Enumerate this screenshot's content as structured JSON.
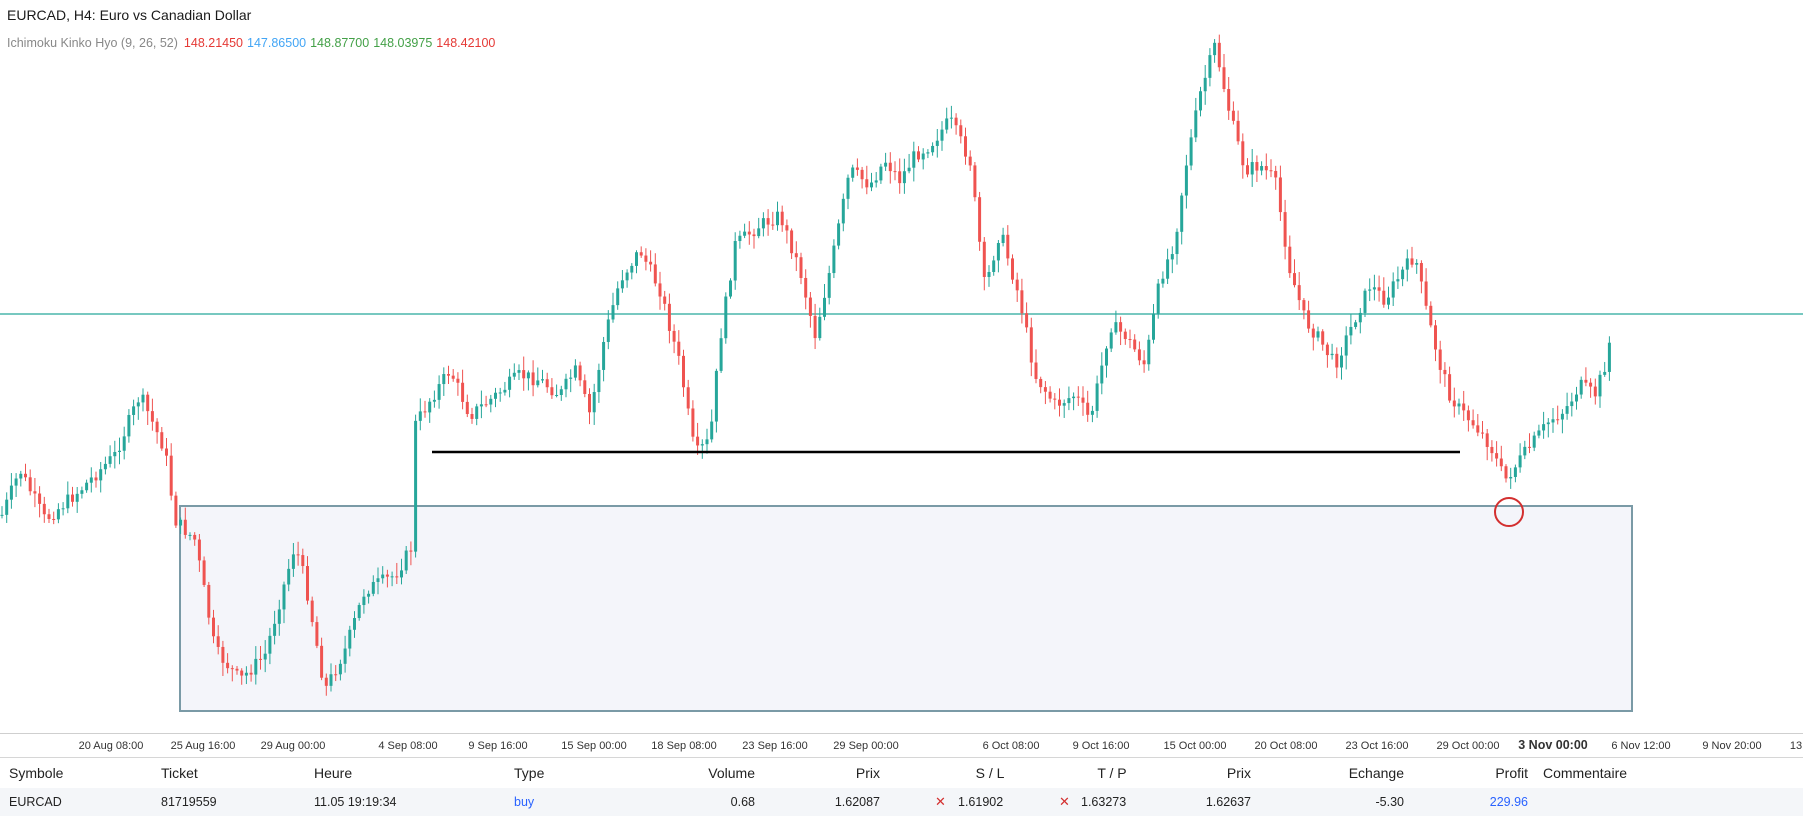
{
  "chart": {
    "title": "EURCAD, H4: Euro vs Canadian Dollar",
    "indicator": {
      "name": "Ichimoku Kinko Hyo (9, 26, 52)",
      "values": [
        {
          "value": "148.21450",
          "color": "#e53935"
        },
        {
          "value": "147.86500",
          "color": "#42a5f5"
        },
        {
          "value": "148.87700",
          "color": "#43a047"
        },
        {
          "value": "148.03975",
          "color": "#43a047"
        },
        {
          "value": "148.42100",
          "color": "#e53935"
        }
      ]
    },
    "colors": {
      "bull": "#26a69a",
      "bear": "#ef5350",
      "price_line": "#26a69a",
      "support_line": "#000000",
      "zone_fill": "#f4f5fa",
      "zone_border": "#7a9aa6",
      "marker": "#d32f2f"
    },
    "time_labels": [
      {
        "text": "20 Aug 08:00",
        "bold": false
      },
      {
        "text": "25 Aug 16:00",
        "bold": false
      },
      {
        "text": "29 Aug 00:00",
        "bold": false
      },
      {
        "text": "4 Sep 08:00",
        "bold": false
      },
      {
        "text": "9 Sep 16:00",
        "bold": false
      },
      {
        "text": "15 Sep 00:00",
        "bold": false
      },
      {
        "text": "18 Sep 08:00",
        "bold": false
      },
      {
        "text": "23 Sep 16:00",
        "bold": false
      },
      {
        "text": "29 Sep 00:00",
        "bold": false
      },
      {
        "text": "6 Oct 08:00",
        "bold": false
      },
      {
        "text": "9 Oct 16:00",
        "bold": false
      },
      {
        "text": "15 Oct 00:00",
        "bold": false
      },
      {
        "text": "20 Oct 08:00",
        "bold": false
      },
      {
        "text": "23 Oct 16:00",
        "bold": false
      },
      {
        "text": "29 Oct 00:00",
        "bold": false
      },
      {
        "text": "3 Nov 00:00",
        "bold": true
      },
      {
        "text": "6 Nov 12:00",
        "bold": false
      },
      {
        "text": "9 Nov 20:00",
        "bold": false
      },
      {
        "text": "13",
        "bold": false
      }
    ]
  },
  "trades": {
    "headers": {
      "symbol": "Symbole",
      "ticket": "Ticket",
      "time": "Heure",
      "type": "Type",
      "volume": "Volume",
      "price": "Prix",
      "sl": "S / L",
      "tp": "T / P",
      "current_price": "Prix",
      "swap": "Echange",
      "profit": "Profit",
      "comment": "Commentaire"
    },
    "rows": [
      {
        "symbol": "EURCAD",
        "ticket": "81719559",
        "time": "11.05 19:19:34",
        "type": "buy",
        "volume": "0.68",
        "price": "1.62087",
        "sl": "1.61902",
        "tp": "1.63273",
        "current_price": "1.62637",
        "swap": "-5.30",
        "profit": "229.96",
        "comment": "",
        "sl_icon": "close-icon",
        "tp_icon": "close-icon"
      }
    ]
  }
}
